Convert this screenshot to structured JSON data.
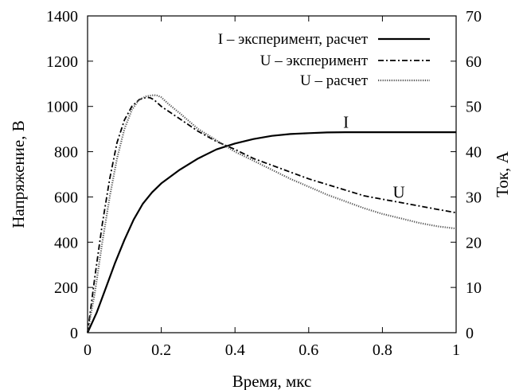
{
  "chart_data": {
    "type": "line",
    "xlabel": "Время, мкс",
    "ylabel_left": "Напряжение, В",
    "ylabel_right": "Ток, А",
    "xlim": [
      0,
      1
    ],
    "ylim_left": [
      0,
      1400
    ],
    "ylim_right": [
      0,
      70
    ],
    "x_ticks": [
      "0",
      "0.2",
      "0.4",
      "0.6",
      "0.8",
      "1"
    ],
    "y_ticks_left": [
      "0",
      "200",
      "400",
      "600",
      "800",
      "1000",
      "1200",
      "1400"
    ],
    "y_ticks_right": [
      "0",
      "10",
      "20",
      "30",
      "40",
      "50",
      "60",
      "70"
    ],
    "grid": false,
    "legend_position": "top-right",
    "series": [
      {
        "name": "I – эксперимент, расчет",
        "axis": "right",
        "style": "solid",
        "x": [
          0,
          0.025,
          0.05,
          0.075,
          0.1,
          0.125,
          0.15,
          0.175,
          0.2,
          0.25,
          0.3,
          0.35,
          0.4,
          0.45,
          0.5,
          0.55,
          0.6,
          0.65,
          0.7,
          0.75,
          0.8,
          0.85,
          0.9,
          0.95,
          1.0
        ],
        "values": [
          0,
          4.5,
          10,
          15.5,
          20.5,
          25,
          28.5,
          31,
          33,
          36,
          38.5,
          40.5,
          41.8,
          42.8,
          43.5,
          43.9,
          44.1,
          44.25,
          44.3,
          44.3,
          44.3,
          44.3,
          44.3,
          44.3,
          44.3
        ]
      },
      {
        "name": "U – эксперимент",
        "axis": "left",
        "style": "dashdot",
        "x": [
          0,
          0.02,
          0.04,
          0.06,
          0.08,
          0.1,
          0.12,
          0.14,
          0.16,
          0.17,
          0.18,
          0.2,
          0.25,
          0.3,
          0.35,
          0.4,
          0.45,
          0.5,
          0.55,
          0.6,
          0.65,
          0.7,
          0.75,
          0.8,
          0.85,
          0.9,
          0.95,
          1.0
        ],
        "values": [
          0,
          250,
          480,
          680,
          840,
          940,
          1000,
          1030,
          1040,
          1038,
          1030,
          1000,
          945,
          890,
          845,
          810,
          770,
          740,
          710,
          680,
          655,
          630,
          605,
          590,
          575,
          560,
          545,
          530
        ]
      },
      {
        "name": "U – расчет",
        "axis": "left",
        "style": "dotted",
        "x": [
          0,
          0.02,
          0.04,
          0.06,
          0.08,
          0.1,
          0.12,
          0.14,
          0.16,
          0.18,
          0.19,
          0.2,
          0.22,
          0.25,
          0.3,
          0.35,
          0.4,
          0.45,
          0.5,
          0.55,
          0.6,
          0.65,
          0.7,
          0.75,
          0.8,
          0.85,
          0.9,
          0.95,
          1.0
        ],
        "values": [
          0,
          180,
          400,
          600,
          770,
          900,
          985,
          1030,
          1045,
          1050,
          1048,
          1040,
          1010,
          970,
          900,
          850,
          800,
          760,
          720,
          680,
          645,
          610,
          580,
          550,
          525,
          505,
          485,
          470,
          460
        ]
      }
    ],
    "annotations": [
      {
        "text": "I",
        "x": 0.7,
        "y_right": 46.5
      },
      {
        "text": "U",
        "x": 0.85,
        "y_left": 620
      }
    ]
  }
}
